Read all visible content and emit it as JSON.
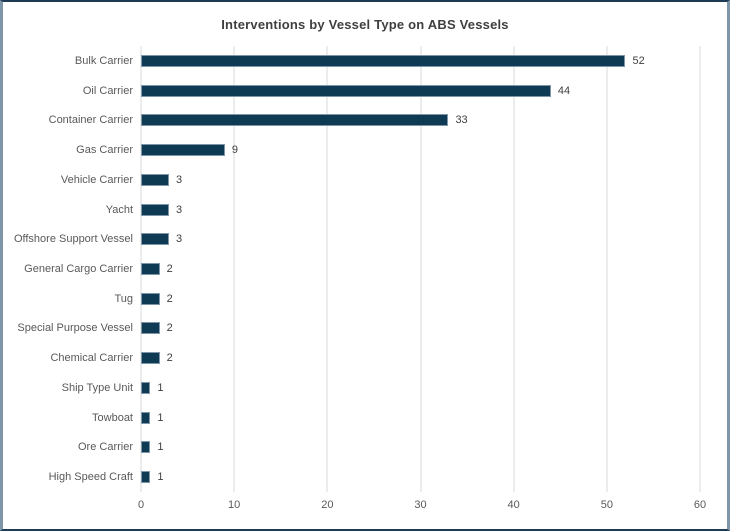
{
  "chart_data": {
    "type": "bar",
    "orientation": "horizontal",
    "title": "Interventions by Vessel Type on ABS Vessels",
    "categories": [
      "Bulk Carrier",
      "Oil Carrier",
      "Container Carrier",
      "Gas Carrier",
      "Vehicle Carrier",
      "Yacht",
      "Offshore Support Vessel",
      "General Cargo Carrier",
      "Tug",
      "Special Purpose Vessel",
      "Chemical Carrier",
      "Ship Type Unit",
      "Towboat",
      "Ore Carrier",
      "High Speed Craft"
    ],
    "values": [
      52,
      44,
      33,
      9,
      3,
      3,
      3,
      2,
      2,
      2,
      2,
      1,
      1,
      1,
      1
    ],
    "data_labels": true,
    "xlabel": "",
    "ylabel": "",
    "xlim": [
      0,
      60
    ],
    "xticks": [
      0,
      10,
      20,
      30,
      40,
      50,
      60
    ],
    "grid": "vertical",
    "legend_position": "none",
    "colors": {
      "bar_fill": "#0e3a53",
      "bar_border": "#7e96a8",
      "gridline": "#d9d9d9",
      "title_text": "#3f3f3f",
      "category_text": "#595959",
      "value_text": "#404040",
      "tick_text": "#595959",
      "frame_top_bottom": "#1f3b53",
      "frame_sides": "#7e96a8"
    }
  }
}
